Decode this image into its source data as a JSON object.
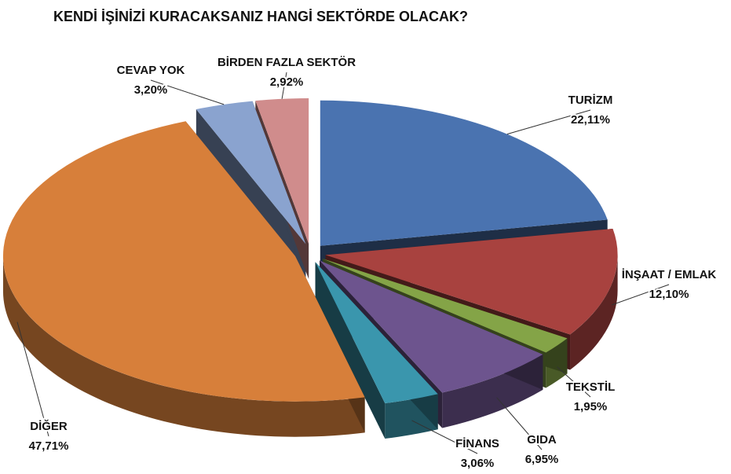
{
  "chart_data": {
    "type": "pie3d",
    "title": "KENDİ İŞİNİZİ KURACAKSANIZ HANGİ SEKTÖRDE OLACAK?",
    "categories": [
      "TURİZM",
      "İNŞAAT / EMLAK",
      "TEKSTİL",
      "GIDA",
      "FİNANS",
      "DİĞER",
      "CEVAP YOK",
      "BİRDEN FAZLA SEKTÖR"
    ],
    "values": [
      22.11,
      12.1,
      1.95,
      6.95,
      3.06,
      47.71,
      3.2,
      2.92
    ],
    "value_labels": [
      "22,11%",
      "12,10%",
      "1,95%",
      "6,95%",
      "3,06%",
      "47,71%",
      "3,20%",
      "2,92%"
    ],
    "colors": [
      "#4a73b0",
      "#a8423f",
      "#84a447",
      "#6d548e",
      "#3a96ad",
      "#d77f3a",
      "#8aa3cf",
      "#d08c8c"
    ]
  }
}
